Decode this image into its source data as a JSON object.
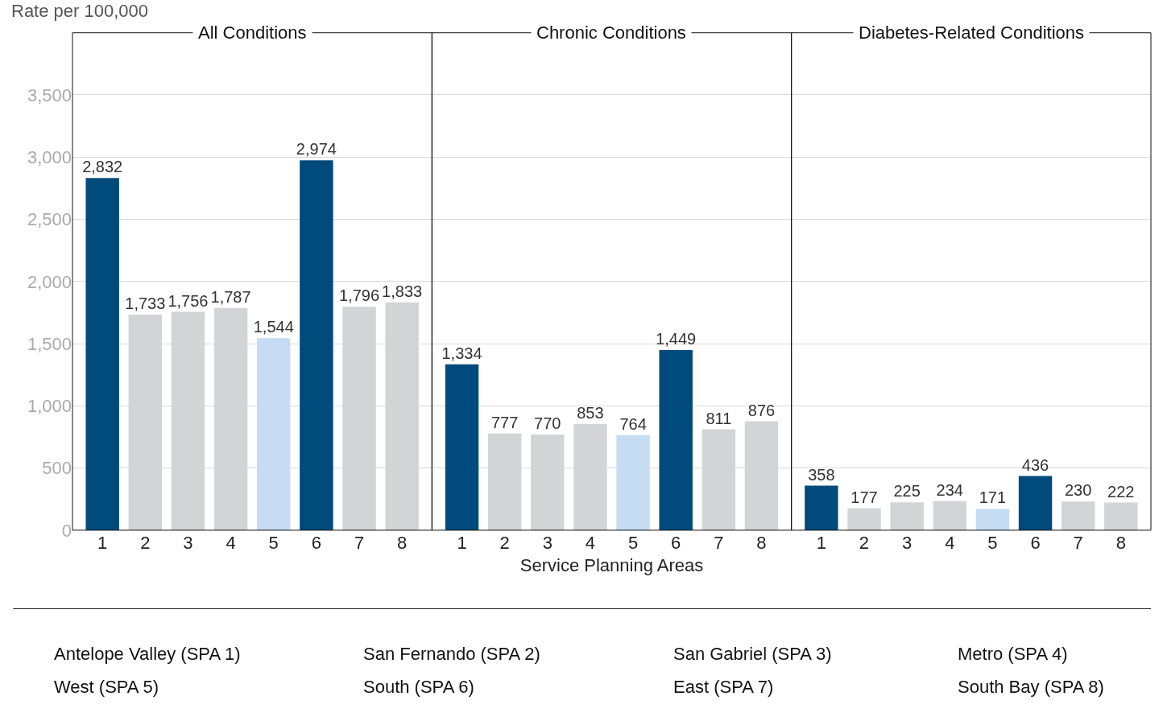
{
  "chart_data": [
    {
      "type": "bar",
      "title": "All Conditions",
      "ylabel": "Rate per 100,000",
      "categories": [
        "1",
        "2",
        "3",
        "4",
        "5",
        "6",
        "7",
        "8"
      ],
      "values": [
        2832,
        1733,
        1756,
        1787,
        1544,
        2974,
        1796,
        1833
      ],
      "value_labels": [
        "2,832",
        "1,733",
        "1,756",
        "1,787",
        "1,544",
        "2,974",
        "1,796",
        "1,833"
      ],
      "colors": [
        "#004a7c",
        "#d3d4d6",
        "#d3d4d6",
        "#d3d4d6",
        "#c6dcf2",
        "#004a7c",
        "#d3d4d6",
        "#d3d4d6"
      ],
      "ylim": [
        0,
        4000
      ],
      "yticks": [
        0,
        500,
        {
          "value": 1000,
          "label": "1,000"
        },
        {
          "value": 1500,
          "label": "1,500"
        },
        {
          "value": 2000,
          "label": "2,000"
        },
        {
          "value": 2500,
          "label": "2,500"
        },
        {
          "value": 3000,
          "label": "3,000"
        },
        {
          "value": 3500,
          "label": "3,500"
        }
      ],
      "grid": "y",
      "annotations": [
        "Antelope Valley (SPA 1)",
        "San Fernando (SPA 2)",
        "San Gabriel (SPA 3)",
        "Metro (SPA 4)",
        "West (SPA 5)",
        "South (SPA 6)",
        "East (SPA 7)",
        "South Bay (SPA 8)"
      ]
    },
    {
      "type": "bar",
      "title": "Chronic Conditions",
      "xlabel": "Service Planning Areas",
      "categories": [
        "1",
        "2",
        "3",
        "4",
        "5",
        "6",
        "7",
        "8"
      ],
      "values": [
        1334,
        777,
        770,
        853,
        764,
        1449,
        811,
        876
      ],
      "value_labels": [
        "1,334",
        "777",
        "770",
        "853",
        "764",
        "1,449",
        "811",
        "876"
      ],
      "colors": [
        "#004a7c",
        "#d3d4d6",
        "#d3d4d6",
        "#d3d4d6",
        "#c6dcf2",
        "#004a7c",
        "#d3d4d6",
        "#d3d4d6"
      ],
      "ylim": [
        0,
        4000
      ],
      "yticks": [
        0,
        500,
        1000,
        1500,
        2000,
        2500,
        3000,
        3500
      ],
      "grid": "y",
      "tick_labels": "x"
    },
    {
      "type": "bar",
      "title": "Diabetes-Related Conditions",
      "categories": [
        "1",
        "2",
        "3",
        "4",
        "5",
        "6",
        "7",
        "8"
      ],
      "values": [
        358,
        177,
        225,
        234,
        171,
        436,
        230,
        222
      ],
      "data_labels": true,
      "colors": [
        "#004a7c",
        "#d3d4d6",
        "#d3d4d6",
        "#d3d4d6",
        "#c6dcf2",
        "#004a7c",
        "#d3d4d6",
        "#d3d4d6"
      ],
      "ylim": [
        0,
        4000
      ],
      "yticks": [
        0,
        500,
        1000,
        1500,
        2000,
        2500,
        3000,
        3500
      ],
      "grid": "y",
      "tick_labels": "x"
    }
  ]
}
